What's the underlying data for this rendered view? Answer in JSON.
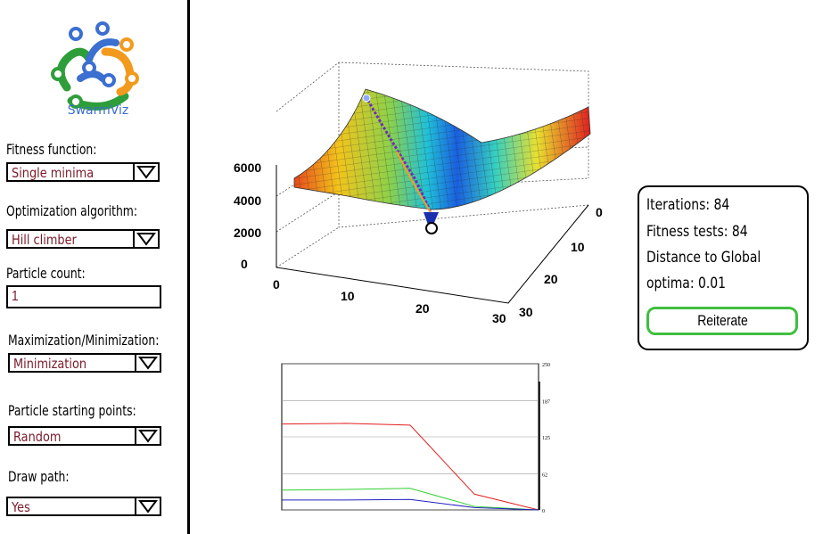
{
  "app": {
    "name": "SwarmViz"
  },
  "sidebar": {
    "fitness_function": {
      "label": "Fitness function:",
      "value": "Single minima"
    },
    "optimization_algorithm": {
      "label": "Optimization algorithm:",
      "value": "Hill climber"
    },
    "particle_count": {
      "label": "Particle count:",
      "value": "1"
    },
    "max_min": {
      "label": "Maximization/Minimization:",
      "value": "Minimization"
    },
    "starting_points": {
      "label": "Particle starting points:",
      "value": "Random"
    },
    "draw_path": {
      "label": "Draw path:",
      "value": "Yes"
    }
  },
  "info": {
    "iterations": "Iterations: 84",
    "fitness_tests": "Fitness tests: 84",
    "distance_line1": "Distance to Global",
    "distance_line2": "optima: 0.01",
    "reiterate_label": "Reiterate"
  },
  "surface_plot": {
    "z_ticks": [
      "0",
      "2000",
      "4000",
      "6000"
    ],
    "x_ticks": [
      "0",
      "10",
      "20",
      "30"
    ],
    "y_ticks": [
      "0",
      "10",
      "20",
      "30"
    ]
  },
  "chart_data": {
    "type": "line",
    "x": [
      0,
      1,
      2,
      3,
      4
    ],
    "ylim": [
      0,
      250
    ],
    "yticks": [
      "0",
      "62",
      "125",
      "187",
      "250"
    ],
    "series": [
      {
        "color": "#e02020",
        "values": [
          147,
          148,
          145,
          27,
          0
        ]
      },
      {
        "color": "#30d030",
        "values": [
          34,
          35,
          37,
          6,
          0
        ]
      },
      {
        "color": "#2020c0",
        "values": [
          17,
          17,
          18,
          4,
          0
        ]
      }
    ]
  }
}
